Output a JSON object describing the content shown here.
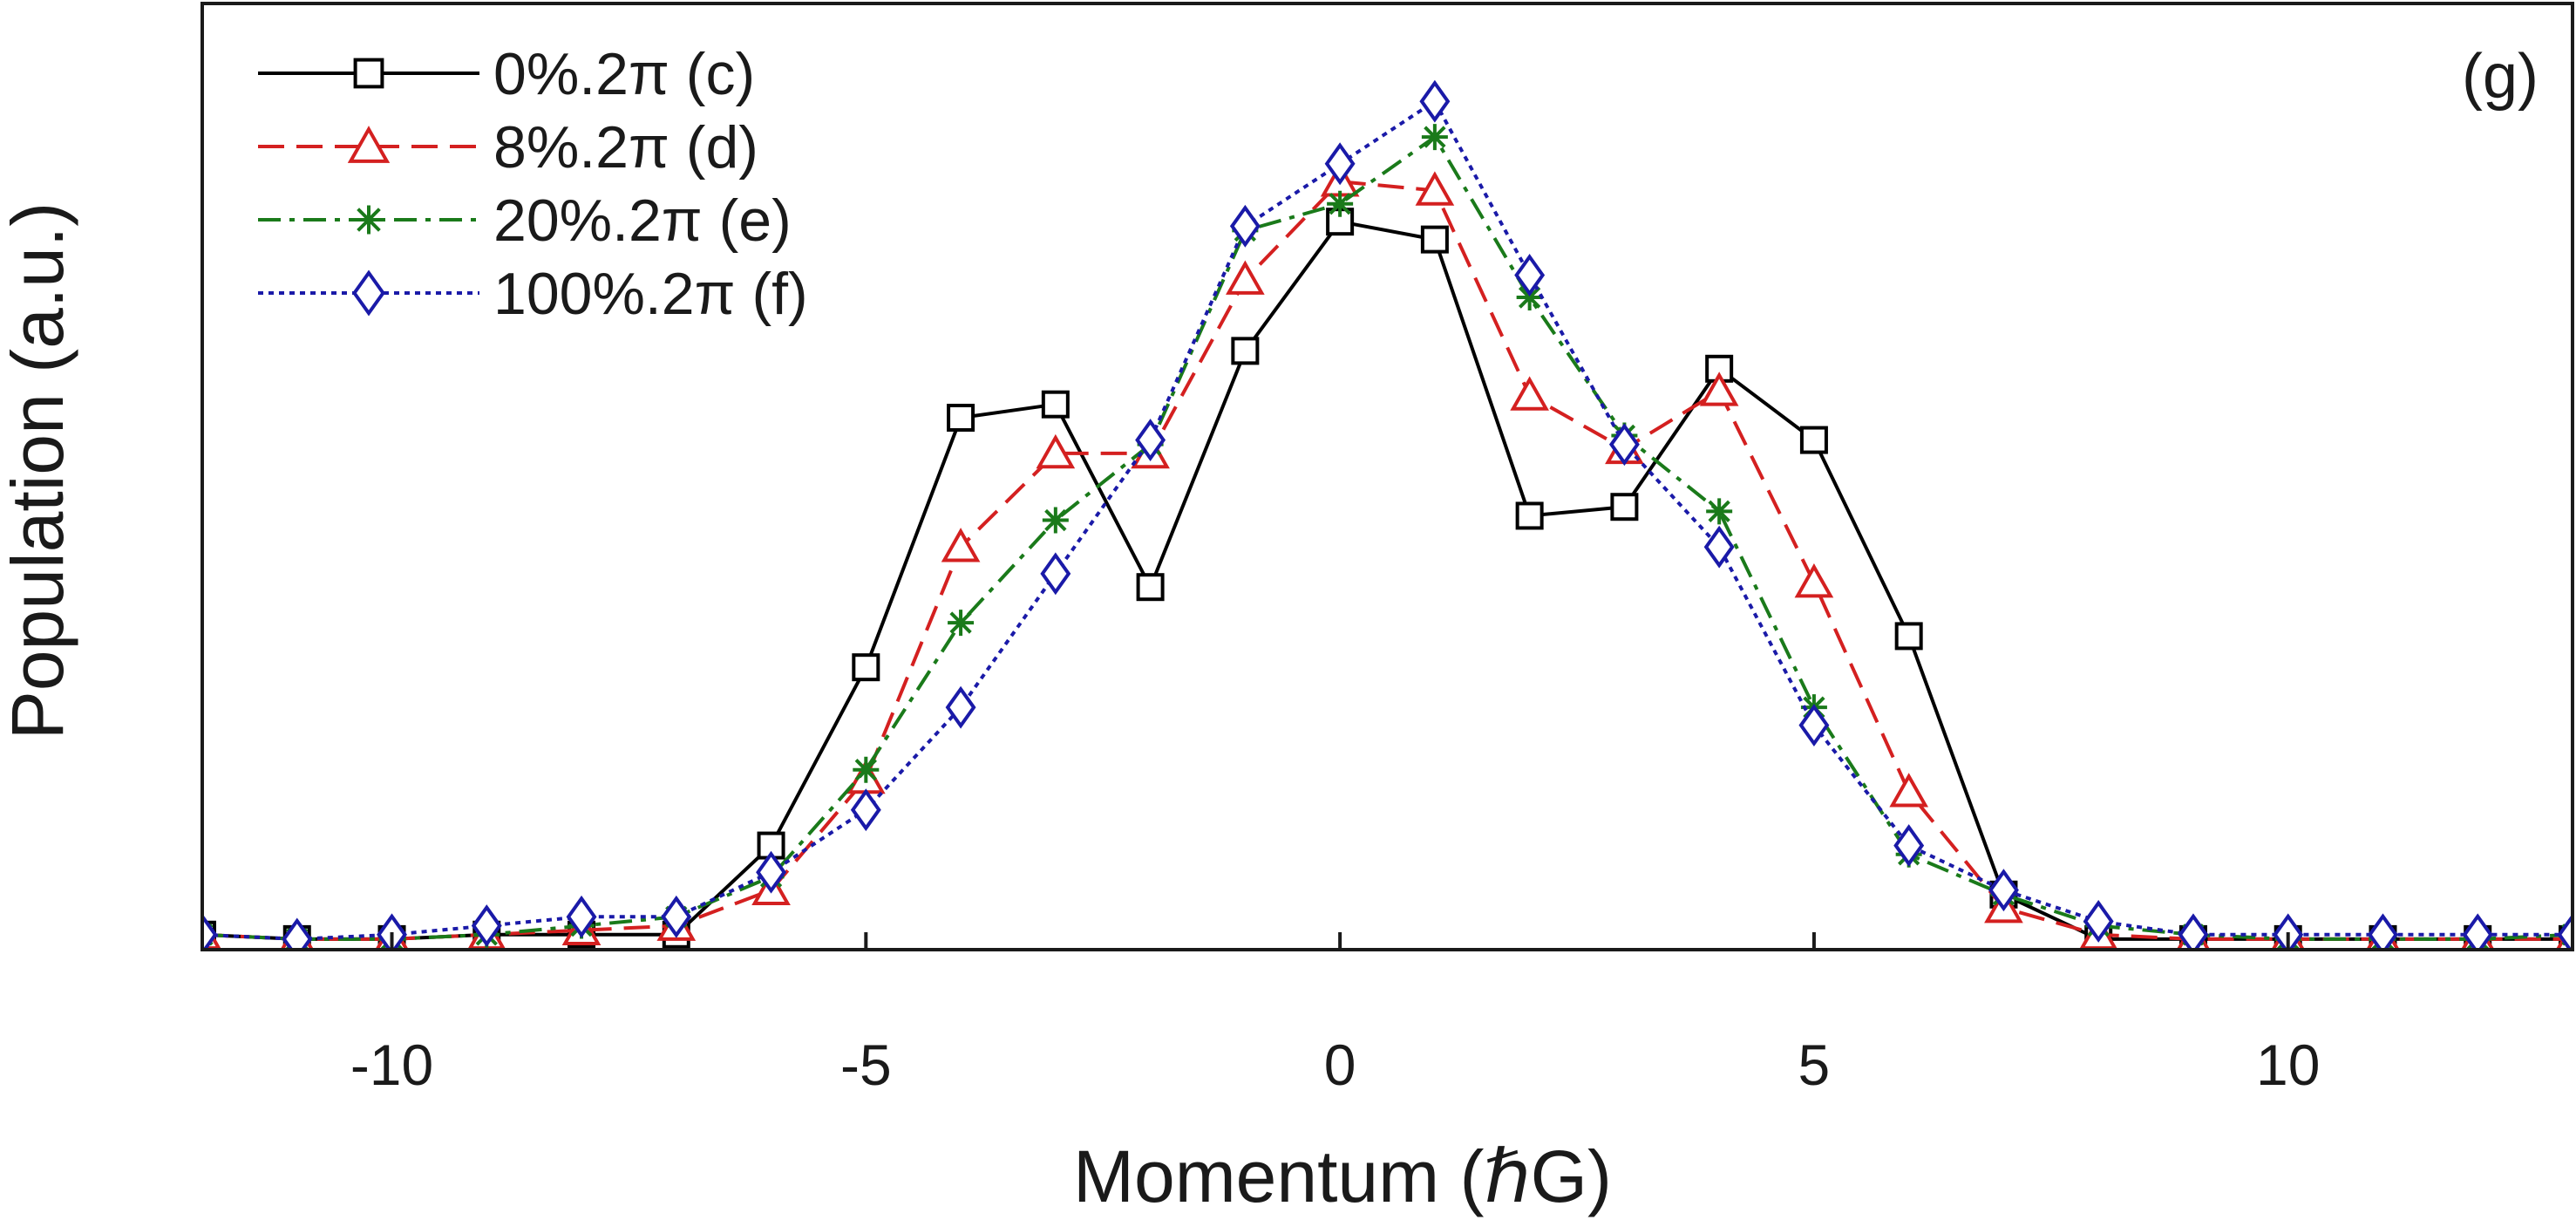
{
  "chart_data": {
    "type": "line",
    "panel_label": "(g)",
    "xlabel": "Momentum (ℏG)",
    "ylabel": "Population (a.u.)",
    "xlim": [
      -12,
      13
    ],
    "ylim": [
      0,
      1.0
    ],
    "xticks": [
      -10,
      -5,
      0,
      5,
      10
    ],
    "xtick_labels": [
      "-10",
      "-5",
      "0",
      "5",
      "10"
    ],
    "yticks_shown": false,
    "grid": false,
    "legend_position": "top-left",
    "x": [
      -12,
      -11,
      -10,
      -9,
      -8,
      -7,
      -6,
      -5,
      -4,
      -3,
      -2,
      -1,
      0,
      1,
      2,
      3,
      4,
      5,
      6,
      7,
      8,
      9,
      10,
      11,
      12,
      13
    ],
    "series": [
      {
        "name": "0%.2π (c)",
        "color": "#000000",
        "dash": "solid",
        "marker": "square",
        "values": [
          0.01,
          0.005,
          0.005,
          0.01,
          0.01,
          0.01,
          0.11,
          0.31,
          0.59,
          0.605,
          0.4,
          0.665,
          0.81,
          0.79,
          0.48,
          0.49,
          0.645,
          0.565,
          0.345,
          0.055,
          0.005,
          0.005,
          0.005,
          0.005,
          0.005,
          0.005
        ]
      },
      {
        "name": "8%.2π (d)",
        "color": "#d42020",
        "dash": "dashed",
        "marker": "triangle",
        "values": [
          0.01,
          0.005,
          0.005,
          0.01,
          0.015,
          0.02,
          0.06,
          0.185,
          0.445,
          0.55,
          0.55,
          0.745,
          0.855,
          0.845,
          0.615,
          0.555,
          0.62,
          0.405,
          0.17,
          0.04,
          0.01,
          0.005,
          0.005,
          0.005,
          0.005,
          0.005
        ]
      },
      {
        "name": "20%.2π (e)",
        "color": "#1a7a1a",
        "dash": "dashdot",
        "marker": "asterisk",
        "values": [
          0.01,
          0.005,
          0.005,
          0.01,
          0.02,
          0.03,
          0.075,
          0.195,
          0.36,
          0.475,
          0.56,
          0.8,
          0.83,
          0.905,
          0.725,
          0.57,
          0.485,
          0.265,
          0.1,
          0.055,
          0.02,
          0.01,
          0.005,
          0.005,
          0.005,
          0.01
        ]
      },
      {
        "name": "100%.2π (f)",
        "color": "#1a1aa8",
        "dash": "dotted",
        "marker": "diamond",
        "values": [
          0.01,
          0.005,
          0.01,
          0.02,
          0.03,
          0.03,
          0.08,
          0.15,
          0.265,
          0.415,
          0.565,
          0.805,
          0.875,
          0.945,
          0.75,
          0.56,
          0.445,
          0.245,
          0.11,
          0.06,
          0.025,
          0.01,
          0.01,
          0.01,
          0.01,
          0.01
        ]
      }
    ]
  }
}
